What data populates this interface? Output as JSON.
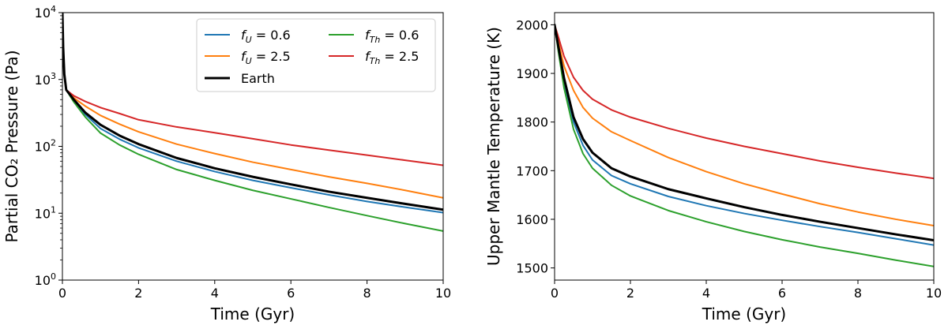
{
  "chart_data": [
    {
      "type": "line",
      "xlabel": "Time (Gyr)",
      "ylabel": "Partial CO₂ Pressure (Pa)",
      "yscale": "log",
      "xlim": [
        0,
        10
      ],
      "ylim": [
        1,
        10000
      ],
      "x_ticks": [
        "0",
        "2",
        "4",
        "6",
        "8",
        "10"
      ],
      "y_ticks": [
        {
          "value": 1,
          "base": "10",
          "exp": "0"
        },
        {
          "value": 10,
          "base": "10",
          "exp": "1"
        },
        {
          "value": 100,
          "base": "10",
          "exp": "2"
        },
        {
          "value": 1000,
          "base": "10",
          "exp": "3"
        },
        {
          "value": 10000,
          "base": "10",
          "exp": "4"
        }
      ],
      "legend": {
        "placement": "top-right",
        "entries": [
          {
            "var": "f",
            "sub": "U",
            "val": "= 0.6",
            "color": "#1f77b4"
          },
          {
            "var": "f",
            "sub": "Th",
            "val": "= 0.6",
            "color": "#2ca02c"
          },
          {
            "var": "f",
            "sub": "U",
            "val": "= 2.5",
            "color": "#ff7f0e"
          },
          {
            "var": "f",
            "sub": "Th",
            "val": "= 2.5",
            "color": "#d62728"
          },
          {
            "label": "Earth",
            "color": "#000000"
          }
        ]
      },
      "series": [
        {
          "name": "f_U = 0.6",
          "color": "#1f77b4",
          "width": 2,
          "points": [
            [
              0,
              10000
            ],
            [
              0.02,
              3000
            ],
            [
              0.05,
              1200
            ],
            [
              0.1,
              700
            ],
            [
              0.3,
              480
            ],
            [
              0.6,
              300
            ],
            [
              1,
              185
            ],
            [
              1.5,
              128
            ],
            [
              2,
              95
            ],
            [
              3,
              60
            ],
            [
              4,
              42
            ],
            [
              5,
              31
            ],
            [
              6,
              24
            ],
            [
              7,
              18.8
            ],
            [
              8,
              15
            ],
            [
              9,
              12.3
            ],
            [
              10,
              10.2
            ]
          ]
        },
        {
          "name": "f_U = 2.5",
          "color": "#ff7f0e",
          "width": 2,
          "points": [
            [
              0,
              10000
            ],
            [
              0.02,
              3000
            ],
            [
              0.05,
              1200
            ],
            [
              0.1,
              700
            ],
            [
              0.3,
              530
            ],
            [
              0.6,
              400
            ],
            [
              1,
              290
            ],
            [
              1.5,
              215
            ],
            [
              2,
              165
            ],
            [
              3,
              108
            ],
            [
              4,
              78
            ],
            [
              5,
              58
            ],
            [
              6,
              45
            ],
            [
              7,
              35
            ],
            [
              8,
              28
            ],
            [
              9,
              22
            ],
            [
              10,
              17
            ]
          ]
        },
        {
          "name": "f_Th = 0.6",
          "color": "#2ca02c",
          "width": 2,
          "points": [
            [
              0,
              10000
            ],
            [
              0.02,
              3000
            ],
            [
              0.05,
              1200
            ],
            [
              0.1,
              700
            ],
            [
              0.3,
              460
            ],
            [
              0.6,
              275
            ],
            [
              1,
              158
            ],
            [
              1.5,
              105
            ],
            [
              2,
              76
            ],
            [
              3,
              45
            ],
            [
              4,
              31
            ],
            [
              5,
              22
            ],
            [
              6,
              16.4
            ],
            [
              7,
              12.2
            ],
            [
              8,
              9.2
            ],
            [
              9,
              7
            ],
            [
              10,
              5.4
            ]
          ]
        },
        {
          "name": "f_Th = 2.5",
          "color": "#d62728",
          "width": 2,
          "points": [
            [
              0,
              10000
            ],
            [
              0.02,
              3000
            ],
            [
              0.05,
              1200
            ],
            [
              0.1,
              700
            ],
            [
              0.3,
              570
            ],
            [
              0.6,
              470
            ],
            [
              1,
              380
            ],
            [
              1.5,
              310
            ],
            [
              2,
              250
            ],
            [
              3,
              195
            ],
            [
              4,
              160
            ],
            [
              5,
              130
            ],
            [
              6,
              105
            ],
            [
              7,
              88
            ],
            [
              8,
              74
            ],
            [
              9,
              62
            ],
            [
              10,
              52
            ]
          ]
        },
        {
          "name": "Earth",
          "color": "#000000",
          "width": 3,
          "points": [
            [
              0,
              10000
            ],
            [
              0.02,
              3000
            ],
            [
              0.05,
              1200
            ],
            [
              0.1,
              700
            ],
            [
              0.3,
              500
            ],
            [
              0.6,
              320
            ],
            [
              1,
              210
            ],
            [
              1.5,
              145
            ],
            [
              2,
              108
            ],
            [
              3,
              67
            ],
            [
              4,
              47
            ],
            [
              5,
              35
            ],
            [
              6,
              27
            ],
            [
              7,
              21
            ],
            [
              8,
              17
            ],
            [
              9,
              13.8
            ],
            [
              10,
              11.3
            ]
          ]
        }
      ]
    },
    {
      "type": "line",
      "xlabel": "Time (Gyr)",
      "ylabel": "Upper Mantle Temperature (K)",
      "yscale": "linear",
      "xlim": [
        0,
        10
      ],
      "ylim": [
        1475,
        2025
      ],
      "x_ticks": [
        "0",
        "2",
        "4",
        "6",
        "8",
        "10"
      ],
      "y_ticks": [
        {
          "value": 1500,
          "label": "1500"
        },
        {
          "value": 1600,
          "label": "1600"
        },
        {
          "value": 1700,
          "label": "1700"
        },
        {
          "value": 1800,
          "label": "1800"
        },
        {
          "value": 1900,
          "label": "1900"
        },
        {
          "value": 2000,
          "label": "2000"
        }
      ],
      "series": [
        {
          "name": "f_U = 0.6",
          "color": "#1f77b4",
          "width": 2,
          "points": [
            [
              0,
              2000
            ],
            [
              0.1,
              1950
            ],
            [
              0.25,
              1880
            ],
            [
              0.5,
              1800
            ],
            [
              0.75,
              1752
            ],
            [
              1,
              1722
            ],
            [
              1.5,
              1690
            ],
            [
              2,
              1673
            ],
            [
              3,
              1647
            ],
            [
              4,
              1628
            ],
            [
              5,
              1612
            ],
            [
              6,
              1598
            ],
            [
              7,
              1585
            ],
            [
              8,
              1573
            ],
            [
              9,
              1560
            ],
            [
              10,
              1547
            ]
          ]
        },
        {
          "name": "f_U = 2.5",
          "color": "#ff7f0e",
          "width": 2,
          "points": [
            [
              0,
              2000
            ],
            [
              0.1,
              1965
            ],
            [
              0.25,
              1915
            ],
            [
              0.5,
              1865
            ],
            [
              0.75,
              1830
            ],
            [
              1,
              1808
            ],
            [
              1.5,
              1780
            ],
            [
              2,
              1762
            ],
            [
              3,
              1727
            ],
            [
              4,
              1698
            ],
            [
              5,
              1673
            ],
            [
              6,
              1652
            ],
            [
              7,
              1632
            ],
            [
              8,
              1615
            ],
            [
              9,
              1600
            ],
            [
              10,
              1587
            ]
          ]
        },
        {
          "name": "f_Th = 0.6",
          "color": "#2ca02c",
          "width": 2,
          "points": [
            [
              0,
              2000
            ],
            [
              0.1,
              1945
            ],
            [
              0.25,
              1870
            ],
            [
              0.5,
              1785
            ],
            [
              0.75,
              1735
            ],
            [
              1,
              1705
            ],
            [
              1.5,
              1670
            ],
            [
              2,
              1648
            ],
            [
              3,
              1618
            ],
            [
              4,
              1595
            ],
            [
              5,
              1575
            ],
            [
              6,
              1558
            ],
            [
              7,
              1543
            ],
            [
              8,
              1530
            ],
            [
              9,
              1516
            ],
            [
              10,
              1503
            ]
          ]
        },
        {
          "name": "f_Th = 2.5",
          "color": "#d62728",
          "width": 2,
          "points": [
            [
              0,
              2000
            ],
            [
              0.1,
              1975
            ],
            [
              0.25,
              1935
            ],
            [
              0.5,
              1892
            ],
            [
              0.75,
              1865
            ],
            [
              1,
              1847
            ],
            [
              1.5,
              1825
            ],
            [
              2,
              1810
            ],
            [
              3,
              1787
            ],
            [
              4,
              1767
            ],
            [
              5,
              1750
            ],
            [
              6,
              1735
            ],
            [
              7,
              1720
            ],
            [
              8,
              1707
            ],
            [
              9,
              1695
            ],
            [
              10,
              1684
            ]
          ]
        },
        {
          "name": "Earth",
          "color": "#000000",
          "width": 3,
          "points": [
            [
              0,
              2000
            ],
            [
              0.1,
              1955
            ],
            [
              0.25,
              1890
            ],
            [
              0.5,
              1810
            ],
            [
              0.75,
              1765
            ],
            [
              1,
              1737
            ],
            [
              1.5,
              1705
            ],
            [
              2,
              1688
            ],
            [
              3,
              1662
            ],
            [
              4,
              1643
            ],
            [
              5,
              1625
            ],
            [
              6,
              1609
            ],
            [
              7,
              1595
            ],
            [
              8,
              1582
            ],
            [
              9,
              1569
            ],
            [
              10,
              1557
            ]
          ]
        }
      ]
    }
  ]
}
